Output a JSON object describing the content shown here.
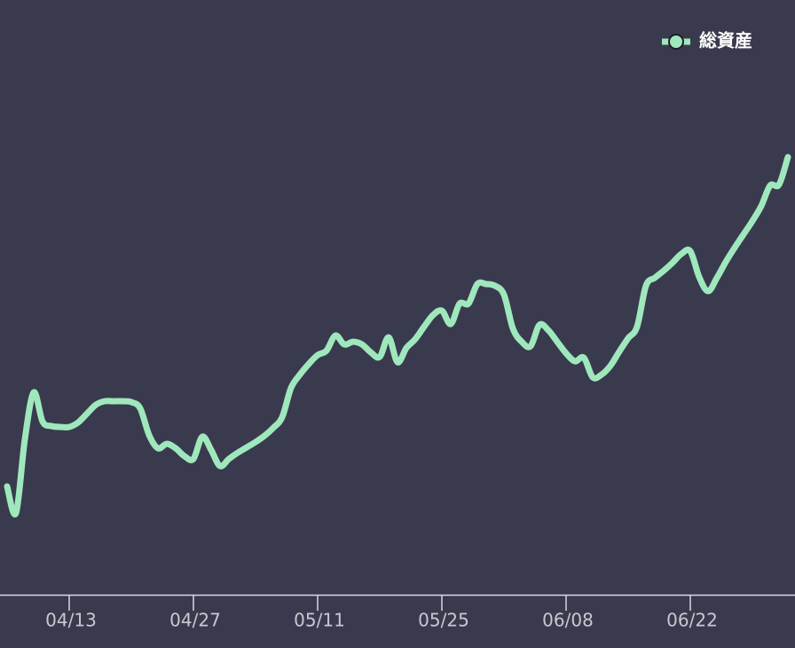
{
  "chart_data": {
    "type": "line",
    "categories": [
      null,
      null,
      null,
      null,
      null,
      null,
      null,
      "04/13",
      null,
      null,
      null,
      null,
      null,
      null,
      null,
      null,
      null,
      null,
      null,
      null,
      null,
      "04/27",
      null,
      null,
      null,
      null,
      null,
      null,
      null,
      null,
      null,
      null,
      null,
      null,
      null,
      "05/11",
      null,
      null,
      null,
      null,
      null,
      null,
      null,
      null,
      null,
      null,
      null,
      null,
      null,
      "05/25",
      null,
      null,
      null,
      null,
      null,
      null,
      null,
      null,
      null,
      null,
      null,
      null,
      null,
      "06/08",
      null,
      null,
      null,
      null,
      null,
      null,
      null,
      null,
      null,
      null,
      null,
      null,
      null,
      "06/22",
      null,
      null,
      null,
      null,
      null,
      null,
      null,
      null,
      null,
      null,
      null
    ],
    "series": [
      {
        "name": "総資産",
        "color": "#9fe8bd",
        "values": [
          122,
          92,
          175,
          228,
          195,
          190,
          189,
          189,
          194,
          204,
          214,
          218,
          218,
          218,
          217,
          210,
          180,
          165,
          170,
          165,
          156,
          153,
          178,
          163,
          145,
          153,
          160,
          166,
          172,
          179,
          188,
          200,
          233,
          248,
          260,
          270,
          275,
          292,
          282,
          285,
          282,
          273,
          268,
          290,
          262,
          278,
          288,
          302,
          315,
          320,
          305,
          328,
          328,
          350,
          350,
          348,
          338,
          300,
          285,
          280,
          304,
          298,
          285,
          272,
          263,
          267,
          245,
          248,
          258,
          274,
          289,
          302,
          348,
          357,
          365,
          374,
          384,
          387,
          358,
          342,
          357,
          375,
          391,
          406,
          421,
          438,
          461,
          462,
          493
        ]
      }
    ],
    "legend": "top-right"
  }
}
